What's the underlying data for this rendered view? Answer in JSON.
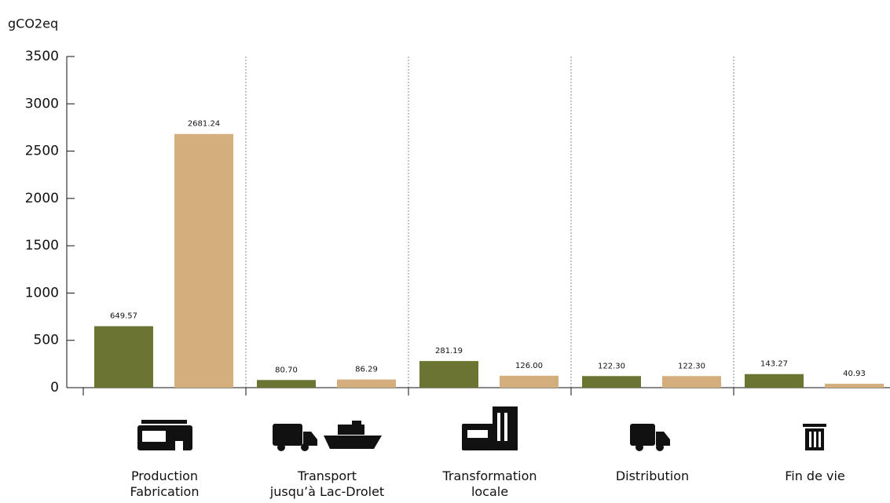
{
  "chart_data": {
    "type": "bar",
    "y_label": "gCO2eq",
    "categories": [
      "Production\nFabrication",
      "Transport\njusqu’à Lac-Drolet",
      "Transformation\nlocale",
      "Distribution",
      "Fin de vie"
    ],
    "series": [
      {
        "color": "#6b7431",
        "values": [
          649.57,
          80.7,
          281.19,
          122.3,
          143.27
        ],
        "value_labels": [
          "649.57",
          "80.70",
          "281.19",
          "122.30",
          "143.27"
        ]
      },
      {
        "color": "#d4ae7d",
        "values": [
          2681.24,
          86.29,
          126,
          122.3,
          40.93
        ],
        "value_labels": [
          "2681.24",
          "86.29",
          "126.00",
          "122.30",
          "40.93"
        ]
      }
    ],
    "ylim": [
      0,
      3500
    ],
    "yticks": [
      0,
      500,
      1000,
      1500,
      2000,
      2500,
      3000,
      3500
    ]
  }
}
